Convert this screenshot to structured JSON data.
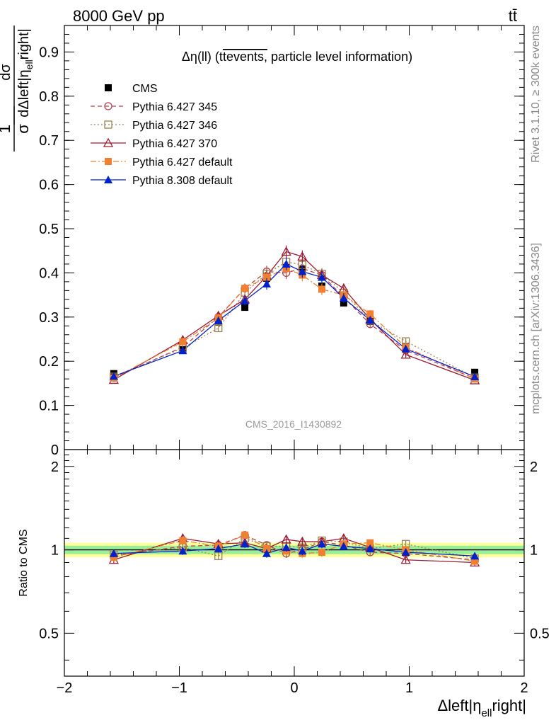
{
  "header": {
    "energy_label": "8000 GeV pp",
    "process_label": "tt̄",
    "rivet_label": "Rivet 3.1.10, ≥ 300k events",
    "mcplots_label": "mcplots.cern.ch [arXiv:1306.3436]",
    "analysis_label": "CMS_2016_I1430892"
  },
  "chart_data": {
    "type": "line",
    "title": "Δη(ll) (ttevents, particle level information)",
    "title_parts": {
      "lead": "Δη(ll) (t",
      "overline": "tevents,",
      "tail": " particle level information)"
    },
    "xlabel": "Δleft|η_ell right|",
    "xlabel_parts": {
      "lead": "Δleft|η",
      "sub": "ell",
      "tail": "right|"
    },
    "ylabel": "1/σ dσ/dΔleft|η_ell right|",
    "ylabel_parts": {
      "num": "1",
      "den": "σ",
      "frac_num": "dσ",
      "frac_den_lead": "dΔleft|η",
      "frac_den_sub": "ell",
      "frac_den_tail": "right|"
    },
    "ratio_ylabel": "Ratio to CMS",
    "xlim": [
      -2,
      2
    ],
    "ylim": [
      0,
      0.96
    ],
    "ratio_ylim": [
      0.35,
      2.3
    ],
    "x_ticks": [
      -2,
      -1,
      0,
      1,
      2
    ],
    "x_tick_labels": [
      "−2",
      "−1",
      "0",
      "1",
      "2"
    ],
    "y_ticks": [
      0,
      0.1,
      0.2,
      0.3,
      0.4,
      0.5,
      0.6,
      0.7,
      0.8,
      0.9
    ],
    "y_tick_labels": [
      "0",
      "0.1",
      "0.2",
      "0.3",
      "0.4",
      "0.5",
      "0.6",
      "0.7",
      "0.8",
      "0.9"
    ],
    "ratio_y_ticks": [
      0.5,
      1,
      2
    ],
    "ratio_y_tick_labels": [
      "0.5",
      "1",
      "2"
    ],
    "legend_placement": "top-left",
    "x": [
      -1.57,
      -0.97,
      -0.66,
      -0.43,
      -0.24,
      -0.07,
      0.07,
      0.24,
      0.43,
      0.66,
      0.97,
      1.57
    ],
    "series": [
      {
        "name": "CMS",
        "color": "#000000",
        "marker": "square-filled",
        "line": "none",
        "values": [
          0.172,
          0.226,
          0.289,
          0.322,
          0.388,
          0.412,
          0.408,
          0.37,
          0.332,
          0.29,
          0.233,
          0.175
        ],
        "ratio": [
          1,
          1,
          1,
          1,
          1,
          1,
          1,
          1,
          1,
          1,
          1,
          1
        ]
      },
      {
        "name": "Pythia 6.427 345",
        "color": "#b5404e",
        "marker": "circle-open",
        "line": "dashed",
        "values": [
          0.163,
          0.232,
          0.3,
          0.365,
          0.403,
          0.4,
          0.41,
          0.395,
          0.345,
          0.284,
          0.225,
          0.161
        ],
        "errors": [
          0.005,
          0.007,
          0.009,
          0.011,
          0.013,
          0.014,
          0.014,
          0.013,
          0.011,
          0.009,
          0.007,
          0.005
        ],
        "ratio": [
          0.95,
          1.03,
          1.04,
          1.13,
          1.04,
          0.97,
          1.0,
          1.07,
          1.04,
          0.98,
          0.97,
          0.92
        ]
      },
      {
        "name": "Pythia 6.427 346",
        "color": "#a08050",
        "marker": "square-open",
        "line": "dotted",
        "values": [
          0.165,
          0.23,
          0.275,
          0.355,
          0.398,
          0.425,
          0.418,
          0.398,
          0.355,
          0.292,
          0.245,
          0.163
        ],
        "errors": [
          0.005,
          0.007,
          0.009,
          0.011,
          0.013,
          0.014,
          0.014,
          0.013,
          0.011,
          0.009,
          0.007,
          0.005
        ],
        "ratio": [
          0.96,
          1.02,
          0.95,
          1.1,
          1.03,
          1.03,
          1.02,
          1.08,
          1.07,
          1.01,
          1.05,
          0.93
        ]
      },
      {
        "name": "Pythia 6.427 370",
        "color": "#9b1b30",
        "marker": "triangle-open",
        "line": "solid",
        "values": [
          0.158,
          0.248,
          0.303,
          0.34,
          0.393,
          0.448,
          0.437,
          0.395,
          0.365,
          0.295,
          0.215,
          0.157
        ],
        "errors": [
          0.005,
          0.007,
          0.009,
          0.011,
          0.013,
          0.014,
          0.014,
          0.013,
          0.011,
          0.009,
          0.007,
          0.005
        ],
        "ratio": [
          0.92,
          1.1,
          1.05,
          1.06,
          1.01,
          1.09,
          1.07,
          1.07,
          1.1,
          1.02,
          0.92,
          0.9
        ]
      },
      {
        "name": "Pythia 6.427 default",
        "color": "#f08030",
        "marker": "square-filled",
        "line": "dashdot",
        "values": [
          0.162,
          0.244,
          0.298,
          0.365,
          0.39,
          0.41,
          0.395,
          0.363,
          0.35,
          0.307,
          0.232,
          0.16
        ],
        "errors": [
          0.005,
          0.007,
          0.009,
          0.011,
          0.013,
          0.014,
          0.014,
          0.013,
          0.011,
          0.009,
          0.007,
          0.005
        ],
        "ratio": [
          0.94,
          1.08,
          1.03,
          1.13,
          1.01,
          0.99,
          0.97,
          0.98,
          1.05,
          1.06,
          1.0,
          0.91
        ]
      },
      {
        "name": "Pythia 8.308 default",
        "color": "#0022cc",
        "marker": "triangle-filled",
        "line": "solid",
        "values": [
          0.166,
          0.224,
          0.292,
          0.337,
          0.375,
          0.42,
          0.403,
          0.39,
          0.343,
          0.293,
          0.228,
          0.165
        ],
        "errors": [
          0.005,
          0.007,
          0.009,
          0.011,
          0.013,
          0.014,
          0.014,
          0.013,
          0.011,
          0.009,
          0.007,
          0.005
        ],
        "ratio": [
          0.97,
          0.99,
          1.01,
          1.05,
          0.97,
          1.02,
          0.99,
          1.05,
          1.03,
          1.01,
          0.98,
          0.95
        ]
      }
    ]
  }
}
